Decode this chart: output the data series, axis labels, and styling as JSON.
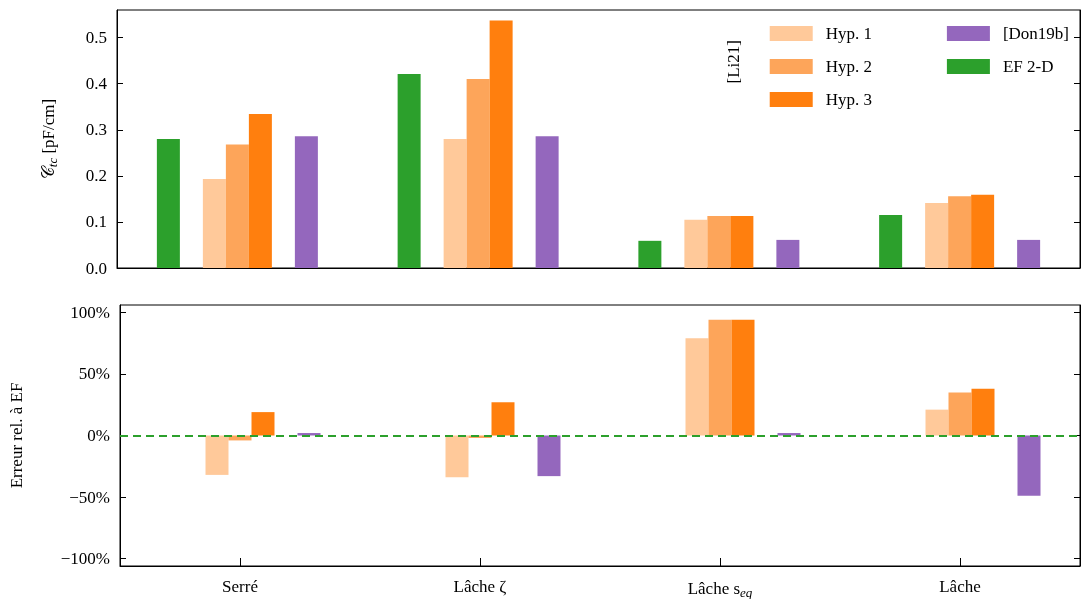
{
  "chart_data": [
    {
      "type": "bar",
      "ylabel": "𝒞$_{tc}$ [pF/cm]",
      "legend_title": "[Li21]",
      "categories": [
        null,
        null,
        null,
        null
      ],
      "series": [
        {
          "name": "Hyp. 1",
          "color": "#ffc99a",
          "values": [
            0.193,
            0.28,
            0.105,
            0.141
          ]
        },
        {
          "name": "Hyp. 2",
          "color": "#fda55a",
          "values": [
            0.268,
            0.41,
            0.113,
            0.156
          ]
        },
        {
          "name": "Hyp. 3",
          "color": "#ff7f0e",
          "values": [
            0.334,
            0.537,
            0.113,
            0.159
          ]
        },
        {
          "name": "[Don19b]",
          "color": "#9467bd",
          "values": [
            0.286,
            0.286,
            0.061,
            0.061
          ]
        },
        {
          "name": "EF 2-D",
          "color": "#2ca02c",
          "values": [
            0.28,
            0.421,
            0.059,
            0.115
          ]
        }
      ],
      "ylim": [
        0,
        0.56
      ],
      "yticks": [
        {
          "value": 0,
          "label": "0.0"
        },
        0.1,
        0.2,
        0.3,
        0.4,
        0.5
      ],
      "tick_labels": "y",
      "legend": "top right",
      "grid": false
    },
    {
      "type": "bar",
      "ylabel": "Erreur rel. à EF",
      "categories": [
        "Serré",
        "Lâche ζ",
        "Lâche s$_{eq}$",
        "Lâche"
      ],
      "series": [
        {
          "color": "#ffc99a",
          "values": [
            -32,
            -34,
            79,
            21
          ]
        },
        {
          "color": "#fda55a",
          "values": [
            -4,
            -2,
            94,
            35
          ]
        },
        {
          "color": "#ff7f0e",
          "values": [
            19,
            27,
            94,
            38
          ]
        },
        {
          "color": "#9467bd",
          "values": [
            2,
            -33,
            2,
            -49
          ]
        }
      ],
      "ylim": [
        -106,
        106
      ],
      "yticks": [
        {
          "value": -100,
          "label": "−100%"
        },
        {
          "value": -50,
          "label": "−50%"
        },
        {
          "value": 0,
          "label": "0%"
        },
        {
          "value": 50,
          "label": "50%"
        },
        {
          "value": 100,
          "label": "100%"
        }
      ],
      "ref_lines": [
        {
          "axis": "y",
          "value": 0,
          "color": "#2ca02c",
          "line_style": "dashed"
        }
      ],
      "legend": false,
      "grid": false
    }
  ]
}
